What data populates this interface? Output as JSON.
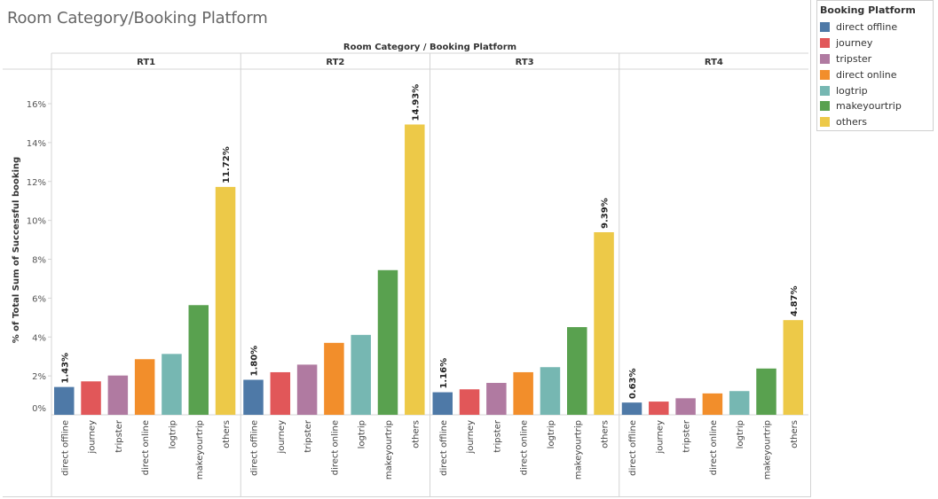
{
  "dashboard": {
    "title": "Room Category/Booking Platform"
  },
  "legend": {
    "title": "Booking Platform",
    "items": [
      {
        "label": "direct offline",
        "color": "#4e79a7"
      },
      {
        "label": "journey",
        "color": "#e15759"
      },
      {
        "label": "tripster",
        "color": "#b07aa1"
      },
      {
        "label": "direct online",
        "color": "#f28e2b"
      },
      {
        "label": "logtrip",
        "color": "#76b7b2"
      },
      {
        "label": "makeyourtrip",
        "color": "#59a14f"
      },
      {
        "label": "others",
        "color": "#edc948"
      }
    ]
  },
  "chart_data": {
    "type": "bar",
    "header_title": "Room Category / Booking Platform",
    "ylabel": "% of Total Sum of Successful booking",
    "ylim": [
      0,
      17.5
    ],
    "yticks": [
      "0%",
      "2%",
      "4%",
      "6%",
      "8%",
      "10%",
      "12%",
      "14%",
      "16%"
    ],
    "ytick_values": [
      0,
      2,
      4,
      6,
      8,
      10,
      12,
      14,
      16
    ],
    "grid": false,
    "legend_position": "top-right",
    "categories": [
      "direct offline",
      "journey",
      "tripster",
      "direct online",
      "logtrip",
      "makeyourtrip",
      "others"
    ],
    "colors": [
      "#4e79a7",
      "#e15759",
      "#b07aa1",
      "#f28e2b",
      "#76b7b2",
      "#59a14f",
      "#edc948"
    ],
    "panels": [
      {
        "name": "RT1",
        "values": [
          1.43,
          1.72,
          2.02,
          2.86,
          3.13,
          5.64,
          11.72
        ],
        "labels": [
          "1.43%",
          "",
          "",
          "",
          "",
          "",
          "11.72%"
        ]
      },
      {
        "name": "RT2",
        "values": [
          1.8,
          2.19,
          2.58,
          3.7,
          4.11,
          7.44,
          14.93
        ],
        "labels": [
          "1.80%",
          "",
          "",
          "",
          "",
          "",
          "14.93%"
        ]
      },
      {
        "name": "RT3",
        "values": [
          1.16,
          1.31,
          1.64,
          2.19,
          2.45,
          4.51,
          9.39
        ],
        "labels": [
          "1.16%",
          "",
          "",
          "",
          "",
          "",
          "9.39%"
        ]
      },
      {
        "name": "RT4",
        "values": [
          0.63,
          0.68,
          0.85,
          1.1,
          1.22,
          2.38,
          4.87
        ],
        "labels": [
          "0.63%",
          "",
          "",
          "",
          "",
          "",
          "4.87%"
        ]
      }
    ]
  }
}
